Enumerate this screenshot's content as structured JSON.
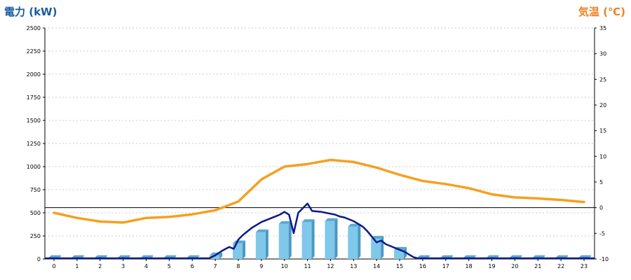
{
  "chart_data": {
    "type": "bar",
    "left_axis_title": "電力 (kW)",
    "right_axis_title": "気温 (℃)",
    "x": [
      0,
      1,
      2,
      3,
      4,
      5,
      6,
      7,
      8,
      9,
      10,
      11,
      12,
      13,
      14,
      15,
      16,
      17,
      18,
      19,
      20,
      21,
      22,
      23
    ],
    "y_left_lim": [
      0,
      2500
    ],
    "y_left_ticks": [
      0,
      250,
      500,
      750,
      1000,
      1250,
      1500,
      1750,
      2000,
      2250,
      2500
    ],
    "y_right_lim": [
      -10,
      35
    ],
    "y_right_ticks": [
      -10,
      -5,
      0,
      5,
      10,
      15,
      20,
      25,
      30,
      35
    ],
    "grid": "horizontal dotted",
    "series": [
      {
        "kind": "bar",
        "axis": "left",
        "color": "#7fc8ea",
        "values": [
          10,
          10,
          10,
          10,
          10,
          10,
          10,
          40,
          170,
          290,
          380,
          400,
          410,
          350,
          220,
          100,
          10,
          10,
          10,
          10,
          10,
          10,
          10,
          10
        ]
      },
      {
        "kind": "line",
        "axis": "left",
        "color": "#0a1a8a",
        "x": [
          6.7,
          7.0,
          7.3,
          7.6,
          7.8,
          8.0,
          8.2,
          8.4,
          8.6,
          8.8,
          9.0,
          9.2,
          9.4,
          9.6,
          9.8,
          10.0,
          10.2,
          10.4,
          10.6,
          10.8,
          11.0,
          11.2,
          11.4,
          11.6,
          11.8,
          12.0,
          12.2,
          12.4,
          12.6,
          12.8,
          13.0,
          13.2,
          13.4,
          13.6,
          13.8,
          14.0,
          14.2,
          14.4,
          14.6,
          14.8,
          15.0,
          15.2,
          15.4,
          15.6,
          15.8
        ],
        "y": [
          5,
          40,
          90,
          130,
          110,
          210,
          260,
          300,
          340,
          370,
          400,
          420,
          440,
          460,
          480,
          510,
          480,
          280,
          500,
          550,
          600,
          520,
          515,
          510,
          500,
          490,
          480,
          460,
          450,
          430,
          410,
          380,
          350,
          300,
          240,
          180,
          200,
          160,
          140,
          120,
          100,
          80,
          50,
          20,
          5
        ]
      },
      {
        "kind": "line",
        "axis": "right",
        "color": "#f5a020",
        "x": [
          0,
          1,
          2,
          3,
          4,
          5,
          6,
          7,
          8,
          9,
          10,
          11,
          12,
          13,
          14,
          15,
          16,
          17,
          18,
          19,
          20,
          21,
          22,
          23
        ],
        "y": [
          -1,
          -2,
          -2.7,
          -2.9,
          -2,
          -1.8,
          -1.3,
          -0.5,
          1.2,
          5.5,
          8,
          8.5,
          9.3,
          8.9,
          7.8,
          6.4,
          5.2,
          4.6,
          3.8,
          2.6,
          2,
          1.8,
          1.5,
          1.1
        ]
      }
    ]
  }
}
